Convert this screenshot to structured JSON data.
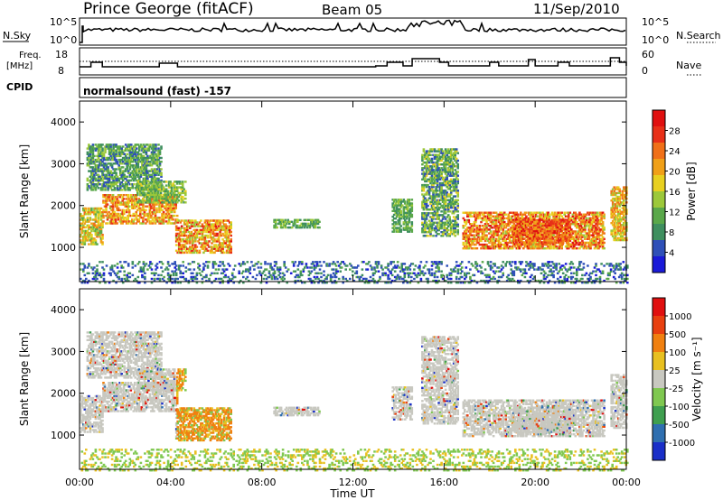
{
  "header": {
    "station": "Prince George (fitACF)",
    "beam": "Beam 05",
    "date": "11/Sep/2010"
  },
  "sky_panel": {
    "left_label": "N.Sky",
    "left_ticks": [
      "10^5",
      "10^0"
    ],
    "right_ticks": [
      "10^5",
      "10^0"
    ],
    "right_label": "N.Search"
  },
  "freq_panel": {
    "left_label_1": "Freq.",
    "left_label_2": "[MHz]",
    "left_ticks": [
      "18",
      "8"
    ],
    "right_ticks": [
      "60",
      "0"
    ],
    "right_label": "Nave"
  },
  "cpid": {
    "label": "CPID",
    "program": "normalsound (fast) -157"
  },
  "chart_data": [
    {
      "type": "heatmap",
      "panel": "power",
      "ylabel": "Slant Range [km]",
      "yticks": [
        "4000",
        "3000",
        "2000",
        "1000"
      ],
      "ylim": [
        180,
        4500
      ],
      "xlim_hours": [
        0,
        24
      ],
      "colorbar": {
        "label": "Power [dB]",
        "ticks": [
          "28",
          "24",
          "20",
          "16",
          "12",
          "8",
          "4"
        ],
        "range": [
          0,
          30
        ]
      },
      "colors": [
        "#1a1ad8",
        "#2f50b8",
        "#3f8f5f",
        "#5aa84a",
        "#9cc83a",
        "#e8d020",
        "#f0a018",
        "#f07018",
        "#e83018",
        "#e01010"
      ]
    },
    {
      "type": "heatmap",
      "panel": "velocity",
      "ylabel": "Slant Range [km]",
      "yticks": [
        "4000",
        "3000",
        "2000",
        "1000"
      ],
      "ylim": [
        180,
        4500
      ],
      "xlim_hours": [
        0,
        24
      ],
      "xticks": [
        "00:00",
        "04:00",
        "08:00",
        "12:00",
        "16:00",
        "20:00",
        "00:00"
      ],
      "xlabel": "Time UT",
      "colorbar": {
        "label": "Velocity [m s⁻¹]",
        "ticks": [
          "1000",
          "500",
          "100",
          "25",
          "-25",
          "-100",
          "-500",
          "-1000"
        ]
      },
      "colors": [
        "#1a2fc8",
        "#2f6fb0",
        "#3f9f4f",
        "#7fc850",
        "#c8c8c0",
        "#e8c020",
        "#f08010",
        "#e84010",
        "#e01010"
      ]
    }
  ]
}
